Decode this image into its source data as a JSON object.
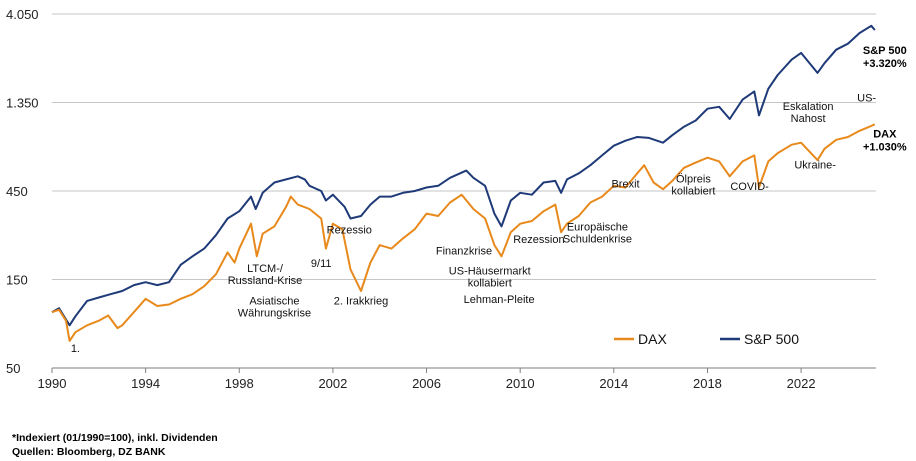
{
  "chart_data": {
    "type": "line",
    "y_scale": "log",
    "ylim": [
      50,
      4050
    ],
    "xlim": [
      1990,
      2025.2
    ],
    "y_ticks": [
      "50",
      "150",
      "450",
      "1.350",
      "4.050"
    ],
    "x_ticks": [
      "1990",
      "1994",
      "1998",
      "2002",
      "2006",
      "2010",
      "2014",
      "2018",
      "2022"
    ],
    "grid": "horizontal",
    "legend_position": "bottom-right",
    "colors": {
      "DAX": "#e8891b",
      "S&P 500": "#1f3a78"
    },
    "series": [
      {
        "name": "DAX",
        "points": [
          [
            1990.0,
            100
          ],
          [
            1990.3,
            103
          ],
          [
            1990.6,
            90
          ],
          [
            1990.75,
            70
          ],
          [
            1991.0,
            78
          ],
          [
            1991.5,
            85
          ],
          [
            1992.0,
            90
          ],
          [
            1992.4,
            96
          ],
          [
            1992.8,
            82
          ],
          [
            1993.0,
            85
          ],
          [
            1993.5,
            100
          ],
          [
            1994.0,
            118
          ],
          [
            1994.5,
            108
          ],
          [
            1995.0,
            110
          ],
          [
            1995.5,
            118
          ],
          [
            1996.0,
            125
          ],
          [
            1996.5,
            138
          ],
          [
            1997.0,
            160
          ],
          [
            1997.5,
            210
          ],
          [
            1997.8,
            185
          ],
          [
            1998.0,
            220
          ],
          [
            1998.5,
            300
          ],
          [
            1998.75,
            200
          ],
          [
            1999.0,
            265
          ],
          [
            1999.5,
            290
          ],
          [
            2000.0,
            370
          ],
          [
            2000.2,
            420
          ],
          [
            2000.5,
            380
          ],
          [
            2001.0,
            360
          ],
          [
            2001.5,
            320
          ],
          [
            2001.7,
            220
          ],
          [
            2002.0,
            300
          ],
          [
            2002.4,
            280
          ],
          [
            2002.75,
            170
          ],
          [
            2003.2,
            130
          ],
          [
            2003.6,
            185
          ],
          [
            2004.0,
            230
          ],
          [
            2004.5,
            220
          ],
          [
            2005.0,
            250
          ],
          [
            2005.5,
            280
          ],
          [
            2006.0,
            340
          ],
          [
            2006.5,
            330
          ],
          [
            2007.0,
            390
          ],
          [
            2007.5,
            430
          ],
          [
            2008.0,
            360
          ],
          [
            2008.5,
            320
          ],
          [
            2008.9,
            230
          ],
          [
            2009.2,
            200
          ],
          [
            2009.6,
            270
          ],
          [
            2010.0,
            300
          ],
          [
            2010.5,
            310
          ],
          [
            2011.0,
            350
          ],
          [
            2011.5,
            380
          ],
          [
            2011.75,
            270
          ],
          [
            2012.0,
            300
          ],
          [
            2012.5,
            330
          ],
          [
            2013.0,
            390
          ],
          [
            2013.5,
            420
          ],
          [
            2014.0,
            480
          ],
          [
            2014.5,
            470
          ],
          [
            2015.0,
            560
          ],
          [
            2015.3,
            620
          ],
          [
            2015.7,
            500
          ],
          [
            2016.1,
            460
          ],
          [
            2016.5,
            510
          ],
          [
            2017.0,
            600
          ],
          [
            2017.5,
            640
          ],
          [
            2018.0,
            680
          ],
          [
            2018.5,
            650
          ],
          [
            2018.95,
            540
          ],
          [
            2019.5,
            650
          ],
          [
            2020.0,
            700
          ],
          [
            2020.2,
            470
          ],
          [
            2020.6,
            650
          ],
          [
            2021.0,
            720
          ],
          [
            2021.6,
            800
          ],
          [
            2022.0,
            820
          ],
          [
            2022.7,
            660
          ],
          [
            2023.0,
            760
          ],
          [
            2023.5,
            850
          ],
          [
            2024.0,
            880
          ],
          [
            2024.5,
            950
          ],
          [
            2025.0,
            1010
          ],
          [
            2025.15,
            1030
          ]
        ]
      },
      {
        "name": "S&P 500",
        "points": [
          [
            1990.0,
            100
          ],
          [
            1990.3,
            105
          ],
          [
            1990.75,
            85
          ],
          [
            1991.0,
            95
          ],
          [
            1991.5,
            115
          ],
          [
            1992.0,
            120
          ],
          [
            1992.5,
            125
          ],
          [
            1993.0,
            130
          ],
          [
            1993.5,
            140
          ],
          [
            1994.0,
            145
          ],
          [
            1994.5,
            140
          ],
          [
            1995.0,
            145
          ],
          [
            1995.5,
            180
          ],
          [
            1996.0,
            200
          ],
          [
            1996.5,
            220
          ],
          [
            1997.0,
            260
          ],
          [
            1997.5,
            320
          ],
          [
            1998.0,
            350
          ],
          [
            1998.5,
            420
          ],
          [
            1998.7,
            360
          ],
          [
            1999.0,
            440
          ],
          [
            1999.5,
            500
          ],
          [
            2000.0,
            520
          ],
          [
            2000.5,
            540
          ],
          [
            2000.8,
            520
          ],
          [
            2001.0,
            480
          ],
          [
            2001.5,
            450
          ],
          [
            2001.7,
            400
          ],
          [
            2002.0,
            430
          ],
          [
            2002.5,
            370
          ],
          [
            2002.75,
            320
          ],
          [
            2003.2,
            330
          ],
          [
            2003.6,
            380
          ],
          [
            2004.0,
            420
          ],
          [
            2004.5,
            420
          ],
          [
            2005.0,
            440
          ],
          [
            2005.5,
            450
          ],
          [
            2006.0,
            470
          ],
          [
            2006.5,
            480
          ],
          [
            2007.0,
            530
          ],
          [
            2007.7,
            580
          ],
          [
            2008.0,
            530
          ],
          [
            2008.5,
            480
          ],
          [
            2008.9,
            340
          ],
          [
            2009.2,
            290
          ],
          [
            2009.6,
            400
          ],
          [
            2010.0,
            440
          ],
          [
            2010.5,
            430
          ],
          [
            2011.0,
            500
          ],
          [
            2011.5,
            510
          ],
          [
            2011.75,
            440
          ],
          [
            2012.0,
            520
          ],
          [
            2012.5,
            560
          ],
          [
            2013.0,
            620
          ],
          [
            2013.5,
            700
          ],
          [
            2014.0,
            790
          ],
          [
            2014.5,
            840
          ],
          [
            2015.0,
            880
          ],
          [
            2015.5,
            870
          ],
          [
            2016.1,
            820
          ],
          [
            2016.5,
            900
          ],
          [
            2017.0,
            1000
          ],
          [
            2017.5,
            1080
          ],
          [
            2018.0,
            1250
          ],
          [
            2018.5,
            1280
          ],
          [
            2018.95,
            1100
          ],
          [
            2019.5,
            1400
          ],
          [
            2020.0,
            1550
          ],
          [
            2020.2,
            1150
          ],
          [
            2020.6,
            1600
          ],
          [
            2021.0,
            1900
          ],
          [
            2021.6,
            2300
          ],
          [
            2022.0,
            2500
          ],
          [
            2022.7,
            1950
          ],
          [
            2023.0,
            2200
          ],
          [
            2023.5,
            2600
          ],
          [
            2024.0,
            2800
          ],
          [
            2024.5,
            3200
          ],
          [
            2025.0,
            3500
          ],
          [
            2025.15,
            3320
          ]
        ]
      }
    ],
    "end_labels": [
      {
        "series": "S&P 500",
        "line1": "S&P 500",
        "line2": "+3.320%"
      },
      {
        "series": "DAX",
        "line1": "DAX",
        "line2": "+1.030%"
      }
    ],
    "annotations": [
      {
        "id": "1",
        "lines": [
          "1."
        ],
        "x": 1991.0,
        "y": 61
      },
      {
        "id": "2",
        "lines": [
          "LTCM-/",
          "Russland-Krise"
        ],
        "x": 1999.1,
        "y": 165
      },
      {
        "id": "3",
        "lines": [
          "Asiatische",
          "Währungskrise"
        ],
        "x": 1999.5,
        "y": 110
      },
      {
        "id": "4",
        "lines": [
          "9/11"
        ],
        "x": 2001.5,
        "y": 175
      },
      {
        "id": "5",
        "lines": [
          "2. Irakkrieg"
        ],
        "x": 2003.2,
        "y": 110
      },
      {
        "id": "6",
        "lines": [
          "Rezessio"
        ],
        "x": 2002.7,
        "y": 265
      },
      {
        "id": "7",
        "lines": [
          "Finanzkrise"
        ],
        "x": 2007.6,
        "y": 205
      },
      {
        "id": "8",
        "lines": [
          "US-Häusermarkt",
          "kollabiert"
        ],
        "x": 2008.7,
        "y": 160
      },
      {
        "id": "9",
        "lines": [
          "Lehman-Pleite"
        ],
        "x": 2009.1,
        "y": 112
      },
      {
        "id": "10",
        "lines": [
          "Rezession"
        ],
        "x": 2010.8,
        "y": 236
      },
      {
        "id": "11",
        "lines": [
          "Europäische",
          "Schuldenkrise"
        ],
        "x": 2013.3,
        "y": 275
      },
      {
        "id": "12",
        "lines": [
          "Brexit"
        ],
        "x": 2014.5,
        "y": 470
      },
      {
        "id": "13",
        "lines": [
          "Ölpreis",
          "kollabiert"
        ],
        "x": 2017.4,
        "y": 500
      },
      {
        "id": "14",
        "lines": [
          "COVID-"
        ],
        "x": 2019.8,
        "y": 455
      },
      {
        "id": "15",
        "lines": [
          "Ukraine-"
        ],
        "x": 2022.6,
        "y": 595
      },
      {
        "id": "16",
        "lines": [
          "Eskalation",
          "Nahost"
        ],
        "x": 2022.3,
        "y": 1230
      },
      {
        "id": "17",
        "lines": [
          "US-"
        ],
        "x": 2024.8,
        "y": 1365
      }
    ]
  },
  "footnotes": {
    "line1": "*Indexiert (01/1990=100), inkl. Dividenden",
    "line2": "Quellen: Bloomberg, DZ BANK"
  }
}
